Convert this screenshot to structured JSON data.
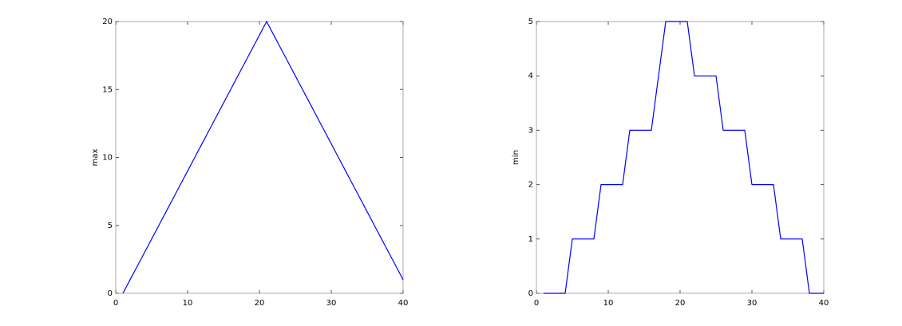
{
  "chart_data": [
    {
      "type": "line",
      "ylabel": "max",
      "x": [
        1,
        2,
        3,
        4,
        5,
        6,
        7,
        8,
        9,
        10,
        11,
        12,
        13,
        14,
        15,
        16,
        17,
        18,
        19,
        20,
        21,
        22,
        23,
        24,
        25,
        26,
        27,
        28,
        29,
        30,
        31,
        32,
        33,
        34,
        35,
        36,
        37,
        38,
        39,
        40
      ],
      "series": [
        {
          "color": "#0000ff",
          "values": [
            0,
            1,
            2,
            3,
            4,
            5,
            6,
            7,
            8,
            9,
            10,
            11,
            12,
            13,
            14,
            15,
            16,
            17,
            18,
            19,
            20,
            19,
            18,
            17,
            16,
            15,
            14,
            13,
            12,
            11,
            10,
            9,
            8,
            7,
            6,
            5,
            4,
            3,
            2,
            1
          ]
        }
      ],
      "xlim": [
        0,
        40
      ],
      "xticks": [
        0,
        10,
        20,
        30,
        40
      ],
      "ylim": [
        0,
        20
      ],
      "yticks": [
        0,
        5,
        10,
        15,
        20
      ]
    },
    {
      "type": "line",
      "ylabel": "min",
      "x": [
        1,
        2,
        3,
        4,
        5,
        6,
        7,
        8,
        9,
        10,
        11,
        12,
        13,
        14,
        15,
        16,
        17,
        18,
        19,
        20,
        21,
        22,
        23,
        24,
        25,
        26,
        27,
        28,
        29,
        30,
        31,
        32,
        33,
        34,
        35,
        36,
        37,
        38,
        39,
        40
      ],
      "series": [
        {
          "color": "#0000ff",
          "values": [
            0,
            0,
            0,
            0,
            1,
            1,
            1,
            1,
            2,
            2,
            2,
            2,
            3,
            3,
            3,
            3,
            4,
            5,
            5,
            5,
            5,
            4,
            4,
            4,
            4,
            3,
            3,
            3,
            3,
            2,
            2,
            2,
            2,
            1,
            1,
            1,
            1,
            0,
            0,
            0
          ]
        }
      ],
      "xlim": [
        0,
        40
      ],
      "xticks": [
        0,
        10,
        20,
        30,
        40
      ],
      "ylim": [
        0,
        5
      ],
      "yticks": [
        0,
        1,
        2,
        3,
        4,
        5
      ]
    }
  ]
}
